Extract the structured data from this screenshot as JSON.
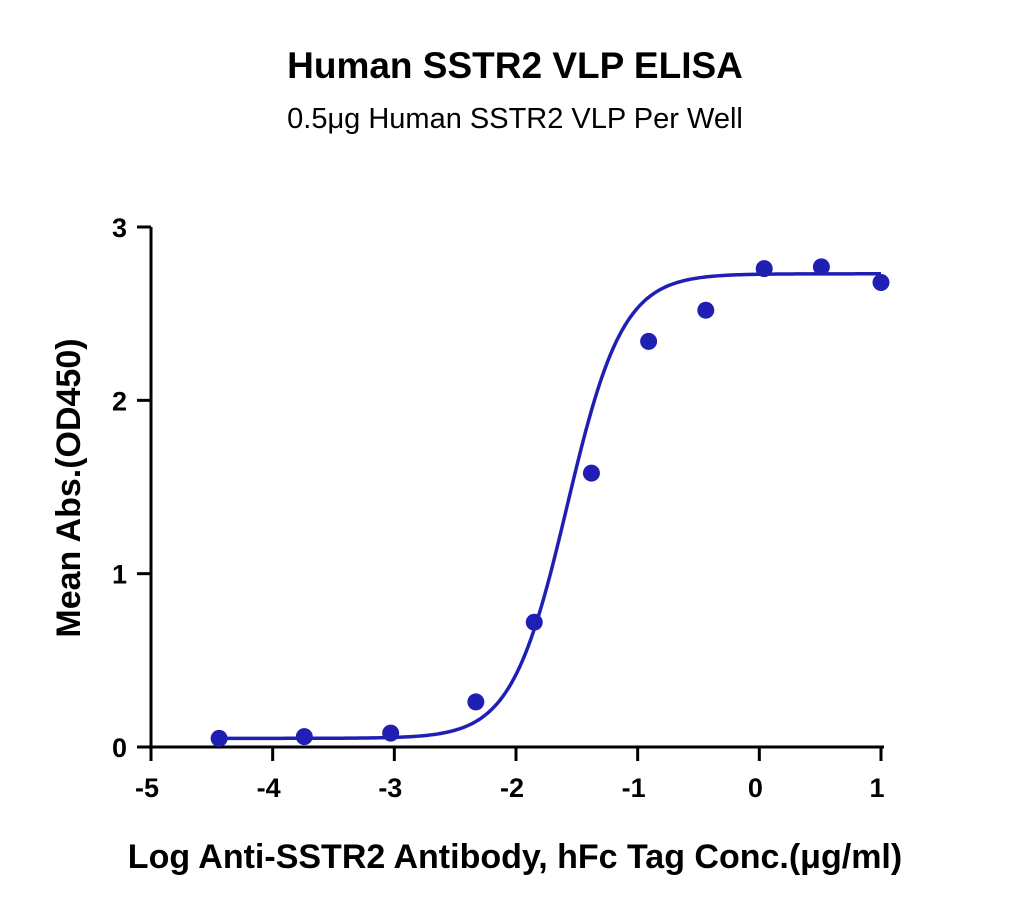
{
  "chart_data": {
    "type": "scatter",
    "title": "Human SSTR2 VLP  ELISA",
    "subtitle": "0.5μg Human SSTR2 VLP Per Well",
    "xlabel": "Log Anti-SSTR2 Antibody, hFc Tag Conc.(μg/ml)",
    "ylabel": "Mean Abs.(OD450)",
    "xlim": [
      -5,
      1
    ],
    "ylim": [
      0,
      3
    ],
    "x_ticks": [
      "-5",
      "-4",
      "-3",
      "-2",
      "-1",
      "0",
      "1"
    ],
    "y_ticks": [
      "0",
      "1",
      "2",
      "3"
    ],
    "grid": false,
    "legend": "none",
    "series": [
      {
        "x": [
          -4.44,
          -3.74,
          -3.03,
          -2.33,
          -1.85,
          -1.38,
          -0.91,
          -0.44,
          0.04,
          0.51,
          1.0
        ],
        "y": [
          0.05,
          0.06,
          0.08,
          0.26,
          0.72,
          1.58,
          2.34,
          2.52,
          2.76,
          2.77,
          2.68
        ],
        "color": "#1f1fb4"
      }
    ],
    "fit_curve": {
      "model": "4PL",
      "bottom": 0.05,
      "top": 2.73,
      "log_ec50": -1.58,
      "hill_slope": 1.9,
      "color": "#1f1fb4"
    }
  }
}
